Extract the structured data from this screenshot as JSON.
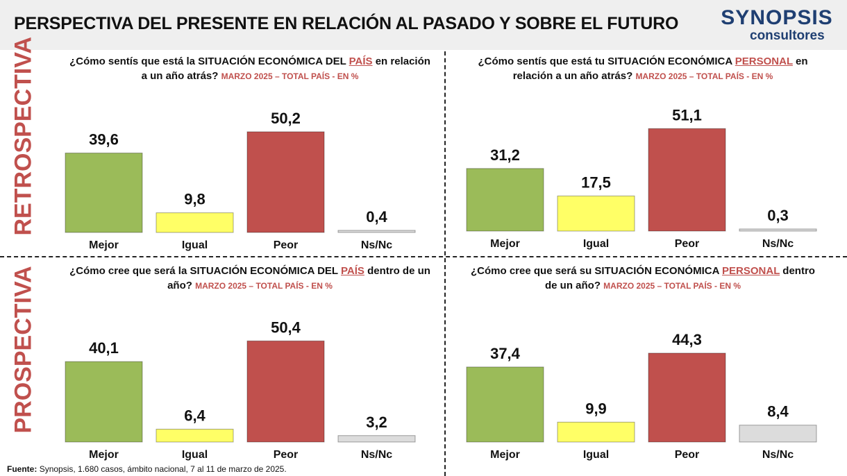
{
  "title": "PERSPECTIVA DEL PRESENTE EN RELACIÓN AL PASADO Y SOBRE EL FUTURO",
  "logo": {
    "name": "SYNOPSIS",
    "sub": "consultores"
  },
  "sections": {
    "top": "RETROSPECTIVA",
    "bottom": "PROSPECTIVA"
  },
  "source": {
    "label": "Fuente:",
    "text": "Synopsis, 1.680 casos, ámbito nacional, 7 al 11 de marzo de 2025."
  },
  "colors": {
    "Mejor": "#9bbb59",
    "Igual": "#ffff66",
    "Peor": "#c0504d",
    "Ns/Nc": "#dcdcdc",
    "accent": "#c0504d"
  },
  "chart_data": [
    {
      "type": "bar",
      "title_pre": "¿Cómo sentís que está la ",
      "title_bold": "SITUACIÓN ECONÓMICA DEL ",
      "title_hl": "PAÍS",
      "title_post": " en relación a un año atrás? ",
      "subtitle": "MARZO 2025 – TOTAL PAÍS - EN %",
      "categories": [
        "Mejor",
        "Igual",
        "Peor",
        "Ns/Nc"
      ],
      "values": [
        39.6,
        9.8,
        50.2,
        0.4
      ],
      "value_labels": [
        "39,6",
        "9,8",
        "50,2",
        "0,4"
      ]
    },
    {
      "type": "bar",
      "title_pre": "¿Cómo sentís que está tu ",
      "title_bold": "SITUACIÓN ECONÓMICA ",
      "title_hl": "PERSONAL",
      "title_post": " en relación a un año atrás? ",
      "subtitle": "MARZO 2025 – TOTAL PAÍS - EN %",
      "categories": [
        "Mejor",
        "Igual",
        "Peor",
        "Ns/Nc"
      ],
      "values": [
        31.2,
        17.5,
        51.1,
        0.3
      ],
      "value_labels": [
        "31,2",
        "17,5",
        "51,1",
        "0,3"
      ]
    },
    {
      "type": "bar",
      "title_pre": "¿Cómo cree que será la ",
      "title_bold": "SITUACIÓN ECONÓMICA DEL ",
      "title_hl": "PAÍS",
      "title_post": " dentro de un año? ",
      "subtitle": "MARZO 2025 – TOTAL PAÍS - EN %",
      "categories": [
        "Mejor",
        "Igual",
        "Peor",
        "Ns/Nc"
      ],
      "values": [
        40.1,
        6.4,
        50.4,
        3.2
      ],
      "value_labels": [
        "40,1",
        "6,4",
        "50,4",
        "3,2"
      ]
    },
    {
      "type": "bar",
      "title_pre": "¿Cómo cree que será su ",
      "title_bold": "SITUACIÓN ECONÓMICA ",
      "title_hl": "PERSONAL",
      "title_post": " dentro de un año? ",
      "subtitle": "MARZO 2025 – TOTAL PAÍS - EN %",
      "categories": [
        "Mejor",
        "Igual",
        "Peor",
        "Ns/Nc"
      ],
      "values": [
        37.4,
        9.9,
        44.3,
        8.4
      ],
      "value_labels": [
        "37,4",
        "9,9",
        "44,3",
        "8,4"
      ]
    }
  ]
}
